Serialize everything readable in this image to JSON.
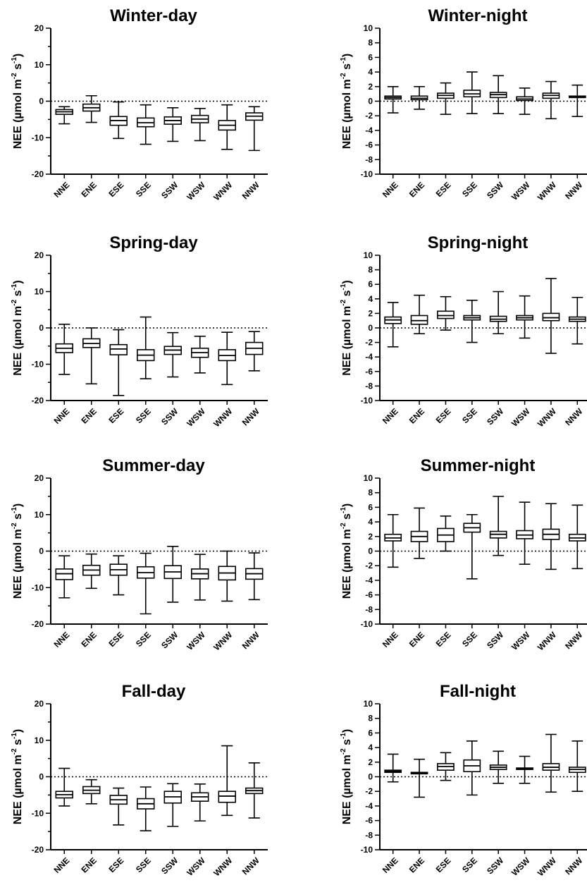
{
  "chart_data": [
    {
      "type": "box",
      "title": "Winter-day",
      "ylabel": {
        "text": "NEE (µmol m",
        "sup1": "-2",
        "mid": " s",
        "sup2": "-1",
        "end": ")"
      },
      "ylim": [
        -20,
        20
      ],
      "yticks": [
        -20,
        -10,
        0,
        10,
        20
      ],
      "reference_line_y": 0,
      "categories": [
        "NNE",
        "ENE",
        "ESE",
        "SSE",
        "SSW",
        "WSW",
        "WNW",
        "NNW"
      ],
      "boxes": [
        {
          "min": -6.2,
          "q1": -3.6,
          "median": -2.9,
          "q3": -2.3,
          "max": -1.5
        },
        {
          "min": -5.8,
          "q1": -2.7,
          "median": -1.8,
          "q3": -0.8,
          "max": 1.5
        },
        {
          "min": -10.2,
          "q1": -6.6,
          "median": -5.3,
          "q3": -4.2,
          "max": -0.2
        },
        {
          "min": -11.8,
          "q1": -7.0,
          "median": -5.9,
          "q3": -4.6,
          "max": -1.0
        },
        {
          "min": -11.0,
          "q1": -6.3,
          "median": -5.3,
          "q3": -4.3,
          "max": -1.8
        },
        {
          "min": -10.8,
          "q1": -5.9,
          "median": -4.9,
          "q3": -3.9,
          "max": -2.0
        },
        {
          "min": -13.2,
          "q1": -7.9,
          "median": -6.6,
          "q3": -5.3,
          "max": -1.0
        },
        {
          "min": -13.5,
          "q1": -5.2,
          "median": -4.1,
          "q3": -3.2,
          "max": -1.5
        }
      ]
    },
    {
      "type": "box",
      "title": "Winter-night",
      "ylabel": {
        "text": "NEE (µmol m",
        "sup1": "-2",
        "mid": " s",
        "sup2": "-1",
        "end": ")"
      },
      "ylim": [
        -10,
        10
      ],
      "yticks": [
        -10,
        -8,
        -6,
        -4,
        -2,
        0,
        2,
        4,
        6,
        8,
        10
      ],
      "reference_line_y": 0,
      "categories": [
        "NNE",
        "ENE",
        "ESE",
        "SSE",
        "SSW",
        "WSW",
        "WNW",
        "NNW"
      ],
      "boxes": [
        {
          "min": -1.6,
          "q1": 0.3,
          "median": 0.5,
          "q3": 0.7,
          "max": 2.0
        },
        {
          "min": -1.1,
          "q1": 0.2,
          "median": 0.4,
          "q3": 0.7,
          "max": 2.0
        },
        {
          "min": -1.8,
          "q1": 0.4,
          "median": 0.8,
          "q3": 1.1,
          "max": 2.5
        },
        {
          "min": -1.7,
          "q1": 0.6,
          "median": 1.0,
          "q3": 1.5,
          "max": 4.0
        },
        {
          "min": -1.7,
          "q1": 0.5,
          "median": 0.9,
          "q3": 1.2,
          "max": 3.5
        },
        {
          "min": -1.8,
          "q1": 0.1,
          "median": 0.3,
          "q3": 0.6,
          "max": 1.8
        },
        {
          "min": -2.4,
          "q1": 0.4,
          "median": 0.8,
          "q3": 1.1,
          "max": 2.7
        },
        {
          "min": -2.1,
          "q1": 0.5,
          "median": 0.6,
          "q3": 0.7,
          "max": 2.2
        }
      ]
    },
    {
      "type": "box",
      "title": "Spring-day",
      "ylabel": {
        "text": "NEE (µmol m",
        "sup1": "-2",
        "mid": " s",
        "sup2": "-1",
        "end": ")"
      },
      "ylim": [
        -20,
        20
      ],
      "yticks": [
        -20,
        -10,
        0,
        10,
        20
      ],
      "reference_line_y": 0,
      "categories": [
        "NNE",
        "ENE",
        "ESE",
        "SSE",
        "SSW",
        "WSW",
        "WNW",
        "NNW"
      ],
      "boxes": [
        {
          "min": -12.8,
          "q1": -6.8,
          "median": -5.6,
          "q3": -4.4,
          "max": 1.0
        },
        {
          "min": -15.4,
          "q1": -5.4,
          "median": -4.3,
          "q3": -3.0,
          "max": 0.0
        },
        {
          "min": -18.6,
          "q1": -7.4,
          "median": -5.8,
          "q3": -4.6,
          "max": -0.5
        },
        {
          "min": -14.0,
          "q1": -9.0,
          "median": -7.5,
          "q3": -6.0,
          "max": 3.0
        },
        {
          "min": -13.5,
          "q1": -7.3,
          "median": -6.1,
          "q3": -5.1,
          "max": -1.3
        },
        {
          "min": -12.4,
          "q1": -8.1,
          "median": -6.8,
          "q3": -5.6,
          "max": -2.3
        },
        {
          "min": -15.6,
          "q1": -9.0,
          "median": -7.6,
          "q3": -6.0,
          "max": -1.2
        },
        {
          "min": -11.8,
          "q1": -7.3,
          "median": -5.6,
          "q3": -4.0,
          "max": -1.0
        }
      ]
    },
    {
      "type": "box",
      "title": "Spring-night",
      "ylabel": {
        "text": "NEE (µmol m",
        "sup1": "-2",
        "mid": " s",
        "sup2": "-1",
        "end": ")"
      },
      "ylim": [
        -10,
        10
      ],
      "yticks": [
        -10,
        -8,
        -6,
        -4,
        -2,
        0,
        2,
        4,
        6,
        8,
        10
      ],
      "reference_line_y": 0,
      "categories": [
        "NNE",
        "ENE",
        "ESE",
        "SSE",
        "SSW",
        "WSW",
        "WNW",
        "NNW"
      ],
      "boxes": [
        {
          "min": -2.6,
          "q1": 0.6,
          "median": 1.1,
          "q3": 1.5,
          "max": 3.5
        },
        {
          "min": -0.8,
          "q1": 0.5,
          "median": 1.0,
          "q3": 1.7,
          "max": 4.5
        },
        {
          "min": -0.3,
          "q1": 1.3,
          "median": 1.7,
          "q3": 2.3,
          "max": 4.3
        },
        {
          "min": -2.0,
          "q1": 1.1,
          "median": 1.4,
          "q3": 1.7,
          "max": 3.8
        },
        {
          "min": -0.8,
          "q1": 0.9,
          "median": 1.2,
          "q3": 1.6,
          "max": 5.0
        },
        {
          "min": -1.4,
          "q1": 1.1,
          "median": 1.4,
          "q3": 1.7,
          "max": 4.4
        },
        {
          "min": -3.5,
          "q1": 1.0,
          "median": 1.4,
          "q3": 2.0,
          "max": 6.8
        },
        {
          "min": -2.2,
          "q1": 0.9,
          "median": 1.2,
          "q3": 1.5,
          "max": 4.2
        }
      ]
    },
    {
      "type": "box",
      "title": "Summer-day",
      "ylabel": {
        "text": "NEE (µmol m",
        "sup1": "-2",
        "mid": " s",
        "sup2": "-1",
        "end": ")"
      },
      "ylim": [
        -20,
        20
      ],
      "yticks": [
        -20,
        -10,
        0,
        10,
        20
      ],
      "reference_line_y": 0,
      "categories": [
        "NNE",
        "ENE",
        "ESE",
        "SSE",
        "SSW",
        "WSW",
        "WNW",
        "NNW"
      ],
      "boxes": [
        {
          "min": -12.8,
          "q1": -7.8,
          "median": -6.2,
          "q3": -4.9,
          "max": -1.3
        },
        {
          "min": -10.2,
          "q1": -6.6,
          "median": -5.2,
          "q3": -3.9,
          "max": -0.8
        },
        {
          "min": -12.0,
          "q1": -6.6,
          "median": -5.1,
          "q3": -3.6,
          "max": -1.3
        },
        {
          "min": -17.2,
          "q1": -7.4,
          "median": -5.9,
          "q3": -4.3,
          "max": -0.6
        },
        {
          "min": -14.0,
          "q1": -7.5,
          "median": -5.7,
          "q3": -4.0,
          "max": 1.3
        },
        {
          "min": -13.4,
          "q1": -7.6,
          "median": -6.2,
          "q3": -4.9,
          "max": -0.9
        },
        {
          "min": -13.7,
          "q1": -7.9,
          "median": -6.0,
          "q3": -4.2,
          "max": 0.0
        },
        {
          "min": -13.3,
          "q1": -7.7,
          "median": -6.2,
          "q3": -4.8,
          "max": -0.5
        }
      ]
    },
    {
      "type": "box",
      "title": "Summer-night",
      "ylabel": {
        "text": "NEE (µmol m",
        "sup1": "-2",
        "mid": " s",
        "sup2": "-1",
        "end": ")"
      },
      "ylim": [
        -10,
        10
      ],
      "yticks": [
        -10,
        -8,
        -6,
        -4,
        -2,
        0,
        2,
        4,
        6,
        8,
        10
      ],
      "reference_line_y": 0,
      "categories": [
        "NNE",
        "ENE",
        "ESE",
        "SSE",
        "SSW",
        "WSW",
        "WNW",
        "NNW"
      ],
      "boxes": [
        {
          "min": -2.2,
          "q1": 1.4,
          "median": 1.8,
          "q3": 2.3,
          "max": 5.0
        },
        {
          "min": -1.0,
          "q1": 1.3,
          "median": 2.0,
          "q3": 2.7,
          "max": 5.9
        },
        {
          "min": 0.0,
          "q1": 1.3,
          "median": 2.2,
          "q3": 3.1,
          "max": 4.8
        },
        {
          "min": -3.8,
          "q1": 2.6,
          "median": 3.2,
          "q3": 3.8,
          "max": 5.0
        },
        {
          "min": -0.6,
          "q1": 1.8,
          "median": 2.3,
          "q3": 2.7,
          "max": 7.5
        },
        {
          "min": -1.8,
          "q1": 1.7,
          "median": 2.2,
          "q3": 2.8,
          "max": 6.7
        },
        {
          "min": -2.5,
          "q1": 1.6,
          "median": 2.3,
          "q3": 3.0,
          "max": 6.5
        },
        {
          "min": -2.4,
          "q1": 1.4,
          "median": 1.8,
          "q3": 2.3,
          "max": 6.3
        }
      ]
    },
    {
      "type": "box",
      "title": "Fall-day",
      "ylabel": {
        "text": "NEE (µmol m",
        "sup1": "-2",
        "mid": " s",
        "sup2": "-1",
        "end": ")"
      },
      "ylim": [
        -20,
        20
      ],
      "yticks": [
        -20,
        -10,
        0,
        10,
        20
      ],
      "reference_line_y": 0,
      "categories": [
        "NNE",
        "ENE",
        "ESE",
        "SSE",
        "SSW",
        "WSW",
        "WNW",
        "NNW"
      ],
      "boxes": [
        {
          "min": -8.0,
          "q1": -5.8,
          "median": -4.9,
          "q3": -4.0,
          "max": 2.3
        },
        {
          "min": -7.4,
          "q1": -4.6,
          "median": -3.7,
          "q3": -2.7,
          "max": -0.8
        },
        {
          "min": -13.2,
          "q1": -7.5,
          "median": -6.3,
          "q3": -5.1,
          "max": -3.1
        },
        {
          "min": -14.8,
          "q1": -8.8,
          "median": -7.4,
          "q3": -6.0,
          "max": -2.8
        },
        {
          "min": -13.6,
          "q1": -7.2,
          "median": -5.5,
          "q3": -4.0,
          "max": -1.9
        },
        {
          "min": -12.1,
          "q1": -6.7,
          "median": -5.5,
          "q3": -4.4,
          "max": -2.0
        },
        {
          "min": -10.6,
          "q1": -7.0,
          "median": -5.3,
          "q3": -4.0,
          "max": 8.5
        },
        {
          "min": -11.3,
          "q1": -4.6,
          "median": -3.8,
          "q3": -3.1,
          "max": 3.8
        }
      ]
    },
    {
      "type": "box",
      "title": "Fall-night",
      "ylabel": {
        "text": "NEE (µmol m",
        "sup1": "-2",
        "mid": " s",
        "sup2": "-1",
        "end": ")"
      },
      "ylim": [
        -10,
        10
      ],
      "yticks": [
        -10,
        -8,
        -6,
        -4,
        -2,
        0,
        2,
        4,
        6,
        8,
        10
      ],
      "reference_line_y": 0,
      "categories": [
        "NNE",
        "ENE",
        "ESE",
        "SSE",
        "SSW",
        "WSW",
        "WNW",
        "NNW"
      ],
      "boxes": [
        {
          "min": -0.7,
          "q1": 0.6,
          "median": 0.75,
          "q3": 0.9,
          "max": 3.1
        },
        {
          "min": -2.8,
          "q1": 0.4,
          "median": 0.5,
          "q3": 0.6,
          "max": 2.4
        },
        {
          "min": -0.5,
          "q1": 0.9,
          "median": 1.4,
          "q3": 1.8,
          "max": 3.3
        },
        {
          "min": -2.5,
          "q1": 0.7,
          "median": 1.5,
          "q3": 2.3,
          "max": 4.9
        },
        {
          "min": -0.9,
          "q1": 1.0,
          "median": 1.3,
          "q3": 1.6,
          "max": 3.5
        },
        {
          "min": -0.9,
          "q1": 1.0,
          "median": 1.1,
          "q3": 1.2,
          "max": 2.8
        },
        {
          "min": -2.1,
          "q1": 0.9,
          "median": 1.3,
          "q3": 1.8,
          "max": 5.8
        },
        {
          "min": -2.0,
          "q1": 0.6,
          "median": 1.0,
          "q3": 1.3,
          "max": 4.9
        }
      ]
    }
  ]
}
